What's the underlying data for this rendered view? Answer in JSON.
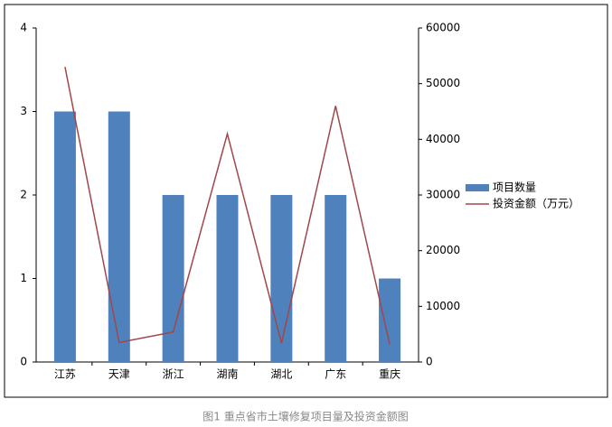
{
  "chart_data": {
    "type": "bar-line",
    "caption": "图1 重点省市土壤修复项目量及投资金额图",
    "categories": [
      "江苏",
      "天津",
      "浙江",
      "湖南",
      "湖北",
      "广东",
      "重庆"
    ],
    "series": [
      {
        "name": "项目数量",
        "type": "bar",
        "color": "#4f81bd",
        "values": [
          3,
          3,
          2,
          2,
          2,
          2,
          1
        ]
      },
      {
        "name": "投资金额（万元）",
        "type": "line",
        "axis": "y2",
        "color": "#a0474a",
        "values": [
          53000,
          3500,
          5400,
          41000,
          3400,
          46000,
          3200
        ]
      }
    ],
    "ylim": [
      0,
      4
    ],
    "yticks": [
      0,
      1,
      2,
      3,
      4
    ],
    "y2lim": [
      0,
      60000
    ],
    "y2ticks": [
      0,
      10000,
      20000,
      30000,
      40000,
      50000,
      60000
    ],
    "legend": "right"
  }
}
